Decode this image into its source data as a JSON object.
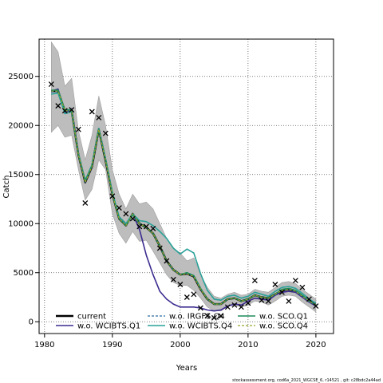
{
  "chart_data": {
    "type": "line",
    "xlabel": "Years",
    "ylabel": "Catch",
    "xlim": [
      1979.2,
      2022.6
    ],
    "ylim": [
      -1200,
      28800
    ],
    "xticks": [
      1980,
      1990,
      2000,
      2010,
      2020
    ],
    "yticks": [
      0,
      5000,
      10000,
      15000,
      20000,
      25000
    ],
    "grid": true,
    "legend_position": "bottom-left",
    "years": [
      1981,
      1982,
      1983,
      1984,
      1985,
      1986,
      1987,
      1988,
      1989,
      1990,
      1991,
      1992,
      1993,
      1994,
      1995,
      1996,
      1997,
      1998,
      1999,
      2000,
      2001,
      2002,
      2003,
      2004,
      2005,
      2006,
      2007,
      2008,
      2009,
      2010,
      2011,
      2012,
      2013,
      2014,
      2015,
      2016,
      2017,
      2018,
      2019,
      2020
    ],
    "band": {
      "upper": [
        28500,
        27500,
        24000,
        24800,
        19500,
        16500,
        19000,
        23000,
        20000,
        15500,
        13000,
        11500,
        13000,
        12000,
        12200,
        11500,
        10000,
        8500,
        7500,
        7000,
        6200,
        6500,
        4800,
        3500,
        2600,
        2400,
        2800,
        3000,
        2700,
        2800,
        3300,
        3100,
        3000,
        3500,
        4000,
        4100,
        3900,
        3300,
        2800,
        2300
      ],
      "lower": [
        19300,
        20000,
        18800,
        19000,
        15500,
        12400,
        13500,
        16500,
        15500,
        11000,
        9000,
        8000,
        9200,
        8200,
        8300,
        7200,
        6000,
        4800,
        4000,
        3700,
        3700,
        3200,
        2400,
        1500,
        1100,
        1100,
        1600,
        1700,
        1500,
        1700,
        2100,
        2000,
        1700,
        2100,
        2600,
        2700,
        2600,
        2000,
        1500,
        1000
      ]
    },
    "observed": {
      "x": [
        1981,
        1982,
        1983,
        1984,
        1985,
        1986,
        1987,
        1988,
        1989,
        1990,
        1991,
        1992,
        1993,
        1994,
        1995,
        1996,
        1997,
        1998,
        1999,
        2000,
        2001,
        2002,
        2003,
        2004,
        2005,
        2006,
        2007,
        2008,
        2009,
        2010,
        2011,
        2012,
        2013,
        2014,
        2015,
        2016,
        2017,
        2018,
        2019,
        2020
      ],
      "y": [
        24200,
        22000,
        21500,
        21600,
        19600,
        12100,
        21400,
        20800,
        19200,
        12800,
        11600,
        11000,
        10500,
        9700,
        9700,
        9500,
        7500,
        6200,
        4300,
        3800,
        2500,
        2800,
        1400,
        600,
        400,
        600,
        1500,
        1700,
        1500,
        1900,
        4200,
        2200,
        2100,
        3800,
        3000,
        2100,
        4200,
        3500,
        2300,
        1600
      ]
    },
    "series": [
      {
        "name": "current",
        "color": "#000000",
        "dash": "",
        "values": [
          23500,
          23500,
          21500,
          21500,
          17000,
          14200,
          15800,
          19600,
          16400,
          13000,
          10500,
          9800,
          11000,
          10000,
          9600,
          9000,
          7700,
          6200,
          5300,
          4800,
          4900,
          4600,
          3300,
          2300,
          1800,
          1800,
          2300,
          2400,
          2100,
          2300,
          2700,
          2500,
          2400,
          2800,
          3200,
          3300,
          3100,
          2600,
          2100,
          1700
        ]
      },
      {
        "name": "w.o. WCIBTS.Q1",
        "color": "#3b2b8f",
        "dash": "",
        "values": [
          23500,
          23700,
          21300,
          21700,
          17100,
          14400,
          15900,
          19700,
          16600,
          13100,
          10600,
          9800,
          11000,
          9400,
          6800,
          4800,
          3100,
          2300,
          1800,
          1500,
          1500,
          1500,
          1400,
          1200,
          1100,
          1200,
          1600,
          1800,
          1700,
          2100,
          2400,
          2300,
          2200,
          2700,
          3000,
          3100,
          3000,
          2500,
          2000,
          1600
        ]
      },
      {
        "name": "w.o. IRGFS.Q4",
        "color": "#2b6aa0",
        "dash": "3,2",
        "values": [
          23400,
          23500,
          21400,
          21500,
          17000,
          14200,
          15800,
          19600,
          16400,
          13000,
          10500,
          9800,
          11000,
          10000,
          9600,
          9000,
          7700,
          6200,
          5300,
          4800,
          4900,
          4600,
          3300,
          2300,
          1800,
          1800,
          2300,
          2400,
          2100,
          2300,
          2700,
          2500,
          2400,
          2800,
          3200,
          3300,
          3100,
          2600,
          2100,
          1700
        ]
      },
      {
        "name": "w.o. WCIBTS.Q4",
        "color": "#2aa198",
        "dash": "",
        "values": [
          23200,
          23300,
          21200,
          21400,
          17100,
          14400,
          16000,
          19700,
          16600,
          13200,
          10700,
          10000,
          11000,
          10300,
          10200,
          9800,
          9200,
          8500,
          7500,
          6900,
          7400,
          7000,
          4900,
          3200,
          2300,
          2200,
          2600,
          2700,
          2400,
          2600,
          3000,
          2800,
          2600,
          3100,
          3500,
          3600,
          3400,
          2900,
          2300,
          1900
        ]
      },
      {
        "name": "w.o. SCO.Q1",
        "color": "#1e8a5a",
        "dash": "",
        "values": [
          23600,
          23600,
          21600,
          21600,
          17000,
          14300,
          15900,
          19600,
          16500,
          13000,
          10500,
          9800,
          10900,
          10000,
          9600,
          9000,
          7700,
          6200,
          5300,
          4800,
          5000,
          4700,
          3400,
          2300,
          1800,
          1800,
          2300,
          2400,
          2100,
          2300,
          2700,
          2500,
          2400,
          2800,
          3300,
          3400,
          3200,
          2700,
          2100,
          1700
        ]
      },
      {
        "name": "w.o. SCO.Q4",
        "color": "#9aa52a",
        "dash": "3,2",
        "values": [
          23500,
          23500,
          21500,
          21500,
          17000,
          14200,
          15800,
          19600,
          16400,
          13000,
          10500,
          9800,
          11000,
          10000,
          9600,
          9000,
          7700,
          6200,
          5300,
          4800,
          4900,
          4600,
          3300,
          2300,
          1800,
          1800,
          2300,
          2400,
          2100,
          2300,
          2700,
          2500,
          2400,
          2800,
          3200,
          3300,
          3100,
          2600,
          2100,
          1700
        ]
      }
    ]
  },
  "footer": "stockassessment.org, cod6a_2021_WGCSE_6, r14521 , git: c28bdc2a44ad"
}
